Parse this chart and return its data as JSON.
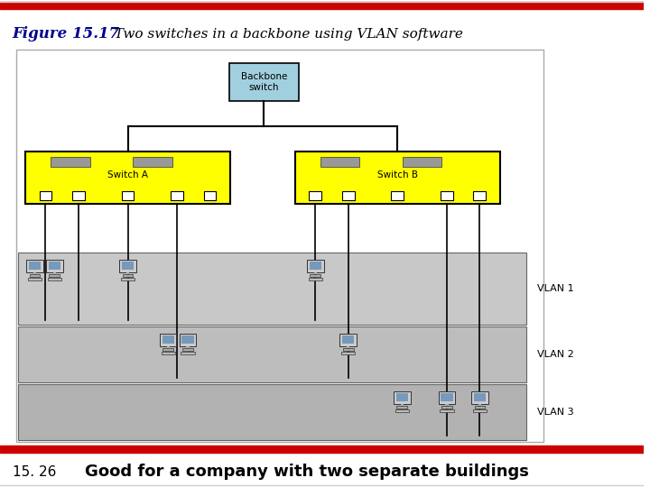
{
  "title_bold": "Figure 15.17",
  "title_italic": "  Two switches in a backbone using VLAN software",
  "footer_left": "15. 26",
  "footer_right": "Good for a company with two separate buildings",
  "bg_color": "#ffffff",
  "top_bar_color": "#cc0000",
  "bottom_bar_color": "#cc0000",
  "backbone_box_color": "#a0cfe0",
  "backbone_text": "Backbone\nswitch",
  "switch_a_label": "Switch A",
  "switch_b_label": "Switch B",
  "switch_color": "#ffff00",
  "vlan1_color_light": "#d0d0d0",
  "vlan1_color_dark": "#b8b8b8",
  "vlan2_color_light": "#c8c8c8",
  "vlan2_color_dark": "#b0b0b0",
  "vlan3_color_light": "#c0c0c0",
  "vlan3_color_dark": "#a8a8a8",
  "vlan_labels": [
    "VLAN 1",
    "VLAN 2",
    "VLAN 3"
  ],
  "title_color": "#00008b",
  "footer_left_color": "#000000",
  "footer_right_color": "#000000",
  "diagram_border_color": "#000000",
  "outer_border_color": "#cccccc"
}
